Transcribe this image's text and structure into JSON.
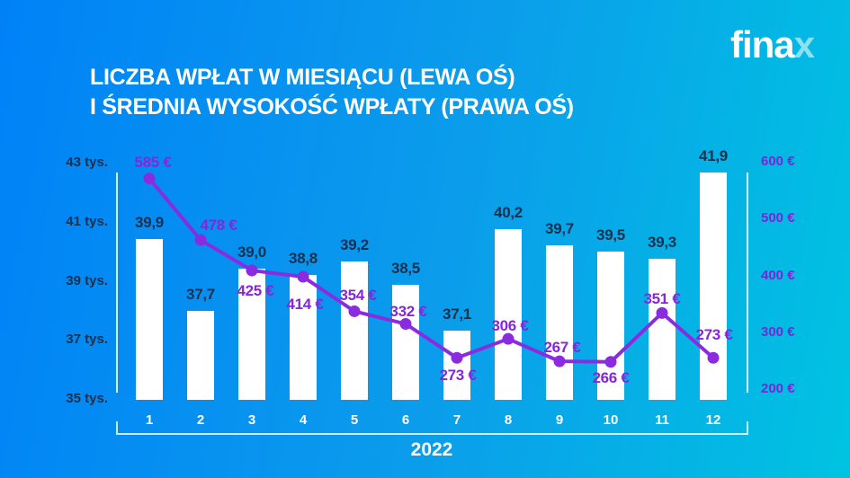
{
  "brand": {
    "logo_main": "fina",
    "logo_x": "x"
  },
  "title": {
    "line1": "LICZBA WPŁAT W MIESIĄCU (LEWA OŚ)",
    "line2": "I ŚREDNIA WYSOKOŚĆ WPŁATY (PRAWA OŚ)"
  },
  "colors": {
    "background_left": "#0082f7",
    "background_right": "#00c3e1",
    "bar_fill": "#ffffff",
    "bar_value_label": "#16314e",
    "left_axis_tick": "#16314e",
    "line_stroke": "#8b2be0",
    "line_value_label": "#8626da",
    "right_axis_tick": "#7a26d6",
    "axis_line": "rgba(255,255,255,0.85)",
    "white_text": "#ffffff"
  },
  "chart_data": {
    "type": "bar+line combo",
    "title": "LICZBA WPŁAT W MIESIĄCU (LEWA OŚ) I ŚREDNIA WYSOKOŚĆ WPŁATY (PRAWA OŚ)",
    "categories": [
      "1",
      "2",
      "3",
      "4",
      "5",
      "6",
      "7",
      "8",
      "9",
      "10",
      "11",
      "12"
    ],
    "x_axis_group_label": "2022",
    "grid": false,
    "legend": false,
    "series": [
      {
        "name": "Liczba wpłat w miesiącu (lewa oś)",
        "type": "bar",
        "axis": "left",
        "unit": "tys.",
        "values": [
          39.9,
          37.7,
          39.0,
          38.8,
          39.2,
          38.5,
          37.1,
          40.2,
          39.7,
          39.5,
          39.3,
          41.9
        ],
        "labels": [
          "39,9",
          "37,7",
          "39,0",
          "38,8",
          "39,2",
          "38,5",
          "37,1",
          "40,2",
          "39,7",
          "39,5",
          "39,3",
          "41,9"
        ]
      },
      {
        "name": "Średnia wysokość wpłaty (prawa oś)",
        "type": "line",
        "axis": "right",
        "unit": "€",
        "values": [
          585,
          478,
          425,
          414,
          354,
          332,
          273,
          306,
          267,
          266,
          351,
          273
        ],
        "labels": [
          "585 €",
          "478 €",
          "425 €",
          "414 €",
          "354 €",
          "332 €",
          "273 €",
          "306 €",
          "267 €",
          "266 €",
          "351 €",
          "273 €"
        ],
        "label_offsets": [
          [
            4,
            -19
          ],
          [
            20,
            -17
          ],
          [
            4,
            22
          ],
          [
            2,
            30
          ],
          [
            4,
            -18
          ],
          [
            3,
            -15
          ],
          [
            1,
            19
          ],
          [
            2,
            -15
          ],
          [
            3,
            -16
          ],
          [
            0,
            17
          ],
          [
            0,
            -16
          ],
          [
            1,
            -26
          ]
        ]
      }
    ],
    "left_axis": {
      "min": 35,
      "max": 43,
      "ticks": [
        "43 tys.",
        "41 tys.",
        "39 tys.",
        "37 tys.",
        "35 tys."
      ]
    },
    "right_axis": {
      "min": 200,
      "max": 600,
      "ticks": [
        "600 €",
        "500 €",
        "400 €",
        "300 €",
        "200 €"
      ]
    }
  }
}
